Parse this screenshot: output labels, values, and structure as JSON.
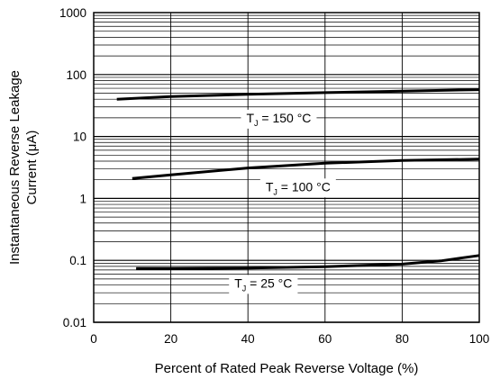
{
  "chart_data": {
    "type": "line",
    "title": "",
    "xlabel": "Percent of Rated Peak Reverse Voltage (%)",
    "ylabel_lines": [
      "Instantaneous Reverse Leakage",
      "Current (μA)"
    ],
    "xlim": [
      0,
      100
    ],
    "ylim": [
      0.01,
      1000
    ],
    "yscale": "log",
    "grid": true,
    "x_ticks": [
      0,
      20,
      40,
      60,
      80,
      100
    ],
    "x_tick_labels": [
      "0",
      "20",
      "40",
      "60",
      "80",
      "100"
    ],
    "y_ticks": [
      0.01,
      0.1,
      1,
      10,
      100,
      1000
    ],
    "y_tick_labels": [
      "0.01",
      "0.1",
      "1",
      "10",
      "100",
      "1000"
    ],
    "series": [
      {
        "name": "TJ = 150 °C",
        "label_main": "T",
        "label_sub": "J",
        "label_rest": " = 150 °C",
        "x": [
          6,
          20,
          40,
          60,
          80,
          100
        ],
        "y": [
          40,
          44,
          48,
          51,
          54,
          57
        ]
      },
      {
        "name": "TJ = 100 °C",
        "label_main": "T",
        "label_sub": "J",
        "label_rest": " = 100 °C",
        "x": [
          10,
          20,
          40,
          60,
          80,
          100
        ],
        "y": [
          2.1,
          2.4,
          3.1,
          3.7,
          4.1,
          4.3
        ]
      },
      {
        "name": "TJ = 25 °C",
        "label_main": "T",
        "label_sub": "J",
        "label_rest": " = 25 °C",
        "x": [
          11,
          20,
          40,
          60,
          80,
          90,
          100
        ],
        "y": [
          0.074,
          0.074,
          0.075,
          0.079,
          0.087,
          0.098,
          0.12
        ]
      }
    ]
  }
}
